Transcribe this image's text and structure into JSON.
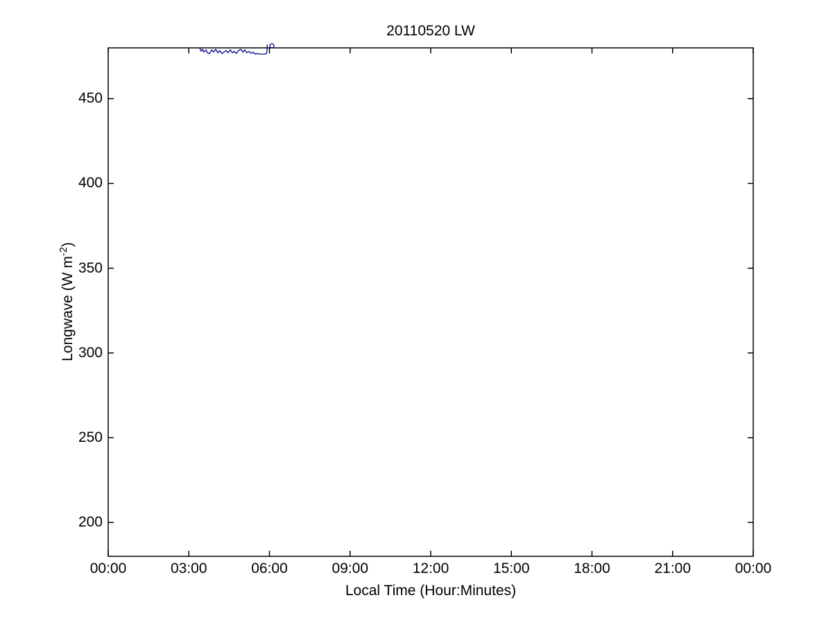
{
  "figure": {
    "title": "20110520 LW",
    "xlabel": "Local Time (Hour:Minutes)",
    "ylabel_base": "Longwave (W m",
    "ylabel_sup": "-2",
    "ylabel_end": ")",
    "background_color": "#ffffff",
    "axis_color": "#000000",
    "text_color": "#000000"
  },
  "chart_data": {
    "type": "line",
    "title": "20110520 LW",
    "xlabel": "Local Time (Hour:Minutes)",
    "ylabel": "Longwave (W m⁻²)",
    "grid": false,
    "legend": "none",
    "xlim_hours": [
      0,
      24
    ],
    "ylim": [
      180,
      480
    ],
    "x_ticks": [
      "00:00",
      "03:00",
      "06:00",
      "09:00",
      "12:00",
      "15:00",
      "18:00",
      "21:00",
      "00:00"
    ],
    "x_tick_hours": [
      0,
      3,
      6,
      9,
      12,
      15,
      18,
      21,
      24
    ],
    "y_ticks": [
      200,
      250,
      300,
      350,
      400,
      450
    ],
    "series": [
      {
        "name": "longwave",
        "color": "#00008B",
        "points": [
          [
            3.4,
            480.0
          ],
          [
            3.46,
            478.0
          ],
          [
            3.51,
            479.2
          ],
          [
            3.56,
            477.5
          ],
          [
            3.64,
            478.8
          ],
          [
            3.69,
            477.1
          ],
          [
            3.77,
            476.7
          ],
          [
            3.85,
            478.8
          ],
          [
            3.92,
            477.5
          ],
          [
            4.0,
            479.2
          ],
          [
            4.08,
            477.1
          ],
          [
            4.15,
            478.4
          ],
          [
            4.23,
            476.7
          ],
          [
            4.31,
            477.5
          ],
          [
            4.39,
            478.4
          ],
          [
            4.46,
            477.1
          ],
          [
            4.54,
            478.8
          ],
          [
            4.62,
            477.1
          ],
          [
            4.7,
            477.9
          ],
          [
            4.77,
            476.7
          ],
          [
            4.85,
            478.4
          ],
          [
            4.93,
            479.2
          ],
          [
            5.01,
            477.5
          ],
          [
            5.08,
            478.8
          ],
          [
            5.16,
            477.1
          ],
          [
            5.24,
            477.9
          ],
          [
            5.32,
            476.7
          ],
          [
            5.39,
            477.5
          ],
          [
            5.47,
            476.3
          ],
          [
            5.55,
            476.7
          ],
          [
            5.63,
            476.3
          ],
          [
            5.73,
            476.3
          ],
          [
            5.81,
            476.3
          ],
          [
            5.88,
            476.7
          ],
          [
            5.91,
            477.9
          ],
          [
            5.92,
            482.0
          ]
        ]
      }
    ],
    "end_marker": {
      "t": 6.09,
      "value": 481.2,
      "style": "open-circle",
      "color": "#00008B"
    }
  }
}
